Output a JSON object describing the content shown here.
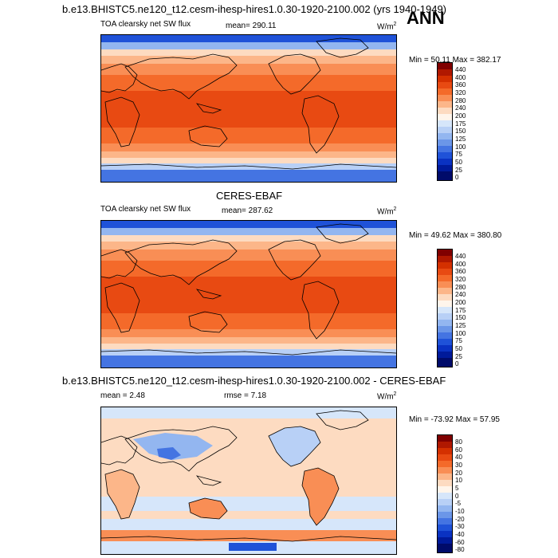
{
  "header": {
    "main_title": "b.e13.BHISTC5.ne120_t12.cesm-ihesp-hires1.0.30-1920-2100.002 (yrs 1940-1949)",
    "season": "ANN"
  },
  "panels": [
    {
      "id": "model",
      "title": "",
      "left_label": "TOA clearsky net SW flux",
      "center_label": "mean= 290.11",
      "units": "W/m",
      "units_sup": "2",
      "minmax": "Min =  50.11 Max = 382.17",
      "colorbar": {
        "colors": [
          "#800000",
          "#b01800",
          "#d43000",
          "#e84a12",
          "#f46a2a",
          "#f98e55",
          "#fcb689",
          "#fddbc1",
          "#fff5eb",
          "#d6e6fa",
          "#b8d0f6",
          "#93b6f0",
          "#6b96e8",
          "#4474e2",
          "#1f52d8",
          "#0a32c2",
          "#001a9a",
          "#000b6a"
        ],
        "labels": [
          "440",
          "400",
          "360",
          "320",
          "280",
          "240",
          "200",
          "175",
          "150",
          "125",
          "100",
          "75",
          "50",
          "25",
          "0"
        ]
      }
    },
    {
      "id": "obs",
      "title": "CERES-EBAF",
      "left_label": "TOA clearsky net SW flux",
      "center_label": "mean= 287.62",
      "units": "W/m",
      "units_sup": "2",
      "minmax": "Min =  49.62 Max = 380.80",
      "colorbar": {
        "colors": [
          "#800000",
          "#b01800",
          "#d43000",
          "#e84a12",
          "#f46a2a",
          "#f98e55",
          "#fcb689",
          "#fddbc1",
          "#fff5eb",
          "#d6e6fa",
          "#b8d0f6",
          "#93b6f0",
          "#6b96e8",
          "#4474e2",
          "#1f52d8",
          "#0a32c2",
          "#001a9a",
          "#000b6a"
        ],
        "labels": [
          "440",
          "400",
          "360",
          "320",
          "280",
          "240",
          "200",
          "175",
          "150",
          "125",
          "100",
          "75",
          "50",
          "25",
          "0"
        ]
      }
    },
    {
      "id": "diff",
      "title": "b.e13.BHISTC5.ne120_t12.cesm-ihesp-hires1.0.30-1920-2100.002 - CERES-EBAF",
      "left_label": "mean =   2.48",
      "center_label": "rmse =   7.18",
      "units": "W/m",
      "units_sup": "2",
      "minmax": "Min = -73.92 Max =  57.95",
      "colorbar": {
        "colors": [
          "#800000",
          "#b01800",
          "#d43000",
          "#e84a12",
          "#f46a2a",
          "#f98e55",
          "#fcb689",
          "#fddbc1",
          "#fff5eb",
          "#d6e6fa",
          "#b8d0f6",
          "#93b6f0",
          "#6b96e8",
          "#4474e2",
          "#1f52d8",
          "#0a32c2",
          "#001a9a",
          "#000b6a"
        ],
        "labels": [
          "80",
          "60",
          "40",
          "30",
          "20",
          "10",
          "5",
          "0",
          "-5",
          "-10",
          "-20",
          "-30",
          "-40",
          "-60",
          "-80"
        ]
      }
    }
  ]
}
